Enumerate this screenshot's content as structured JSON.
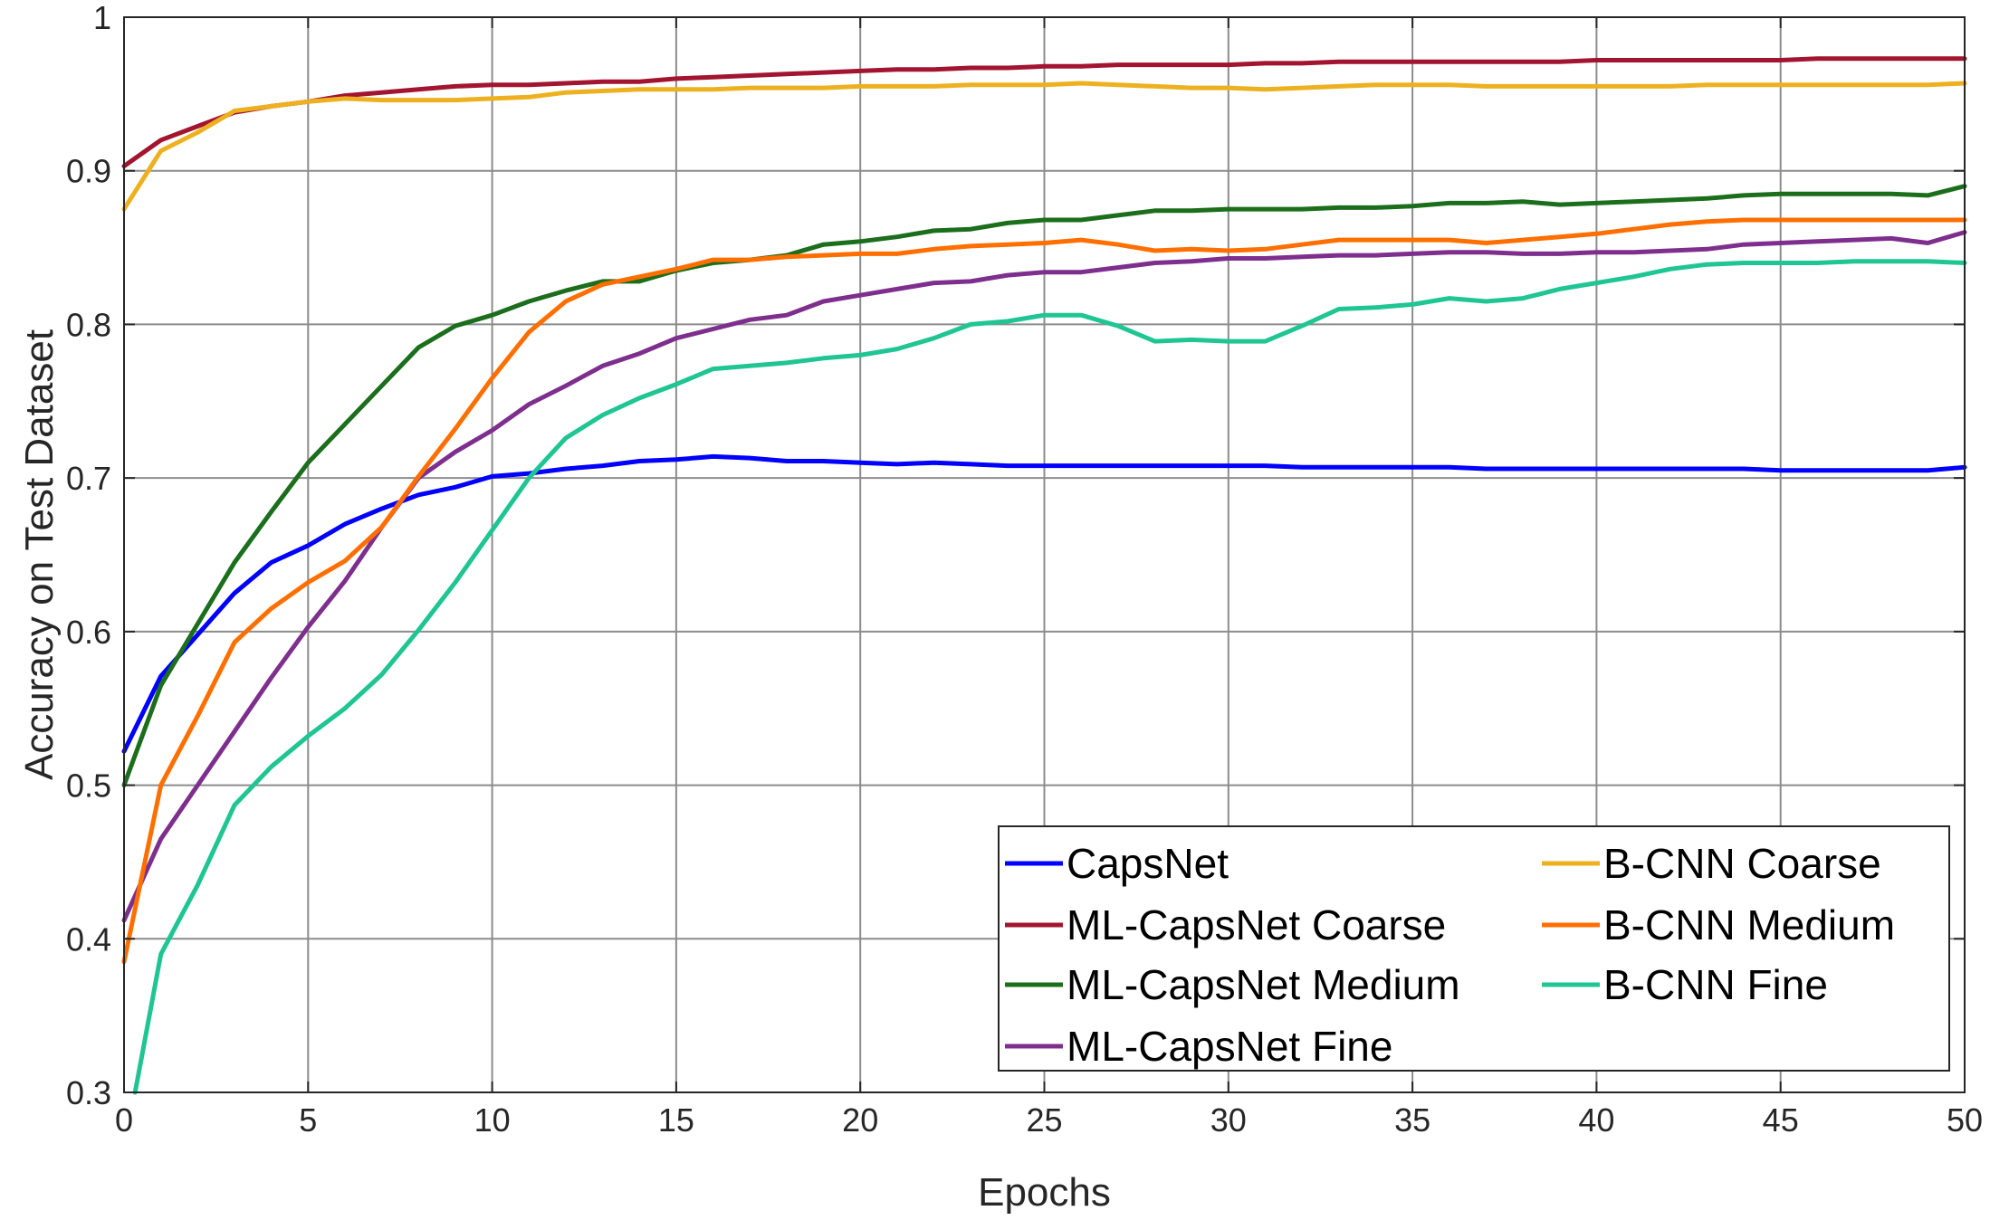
{
  "chart_data": {
    "type": "line",
    "title": "",
    "xlabel": "Epochs",
    "ylabel": "Accuracy on Test Dataset",
    "xlim": [
      0,
      50
    ],
    "ylim": [
      0.3,
      1.0
    ],
    "xticks": [
      0,
      5,
      10,
      15,
      20,
      25,
      30,
      35,
      40,
      45,
      50
    ],
    "yticks": [
      0.3,
      0.4,
      0.5,
      0.6,
      0.7,
      0.8,
      0.9,
      1.0
    ],
    "xtick_labels": [
      "0",
      "5",
      "10",
      "15",
      "20",
      "25",
      "30",
      "35",
      "40",
      "45",
      "50"
    ],
    "ytick_labels": [
      "0.3",
      "0.4",
      "0.5",
      "0.6",
      "0.7",
      "0.8",
      "0.9",
      "1"
    ],
    "grid": true,
    "legend_position": "bottom-right",
    "legend_columns": 2,
    "series": [
      {
        "name": "CapsNet",
        "color": "#0000ff",
        "x": [
          0,
          1,
          2,
          3,
          4,
          5,
          6,
          7,
          8,
          9,
          10,
          11,
          12,
          13,
          14,
          15,
          16,
          17,
          18,
          19,
          20,
          21,
          22,
          23,
          24,
          25,
          26,
          27,
          28,
          29,
          30,
          31,
          32,
          33,
          34,
          35,
          36,
          37,
          38,
          39,
          40,
          41,
          42,
          43,
          44,
          45,
          46,
          47,
          48,
          49,
          50
        ],
        "values": [
          0.522,
          0.571,
          0.598,
          0.625,
          0.645,
          0.656,
          0.67,
          0.68,
          0.689,
          0.694,
          0.701,
          0.703,
          0.706,
          0.708,
          0.711,
          0.712,
          0.714,
          0.713,
          0.711,
          0.711,
          0.71,
          0.709,
          0.71,
          0.709,
          0.708,
          0.708,
          0.708,
          0.708,
          0.708,
          0.708,
          0.708,
          0.708,
          0.707,
          0.707,
          0.707,
          0.707,
          0.707,
          0.706,
          0.706,
          0.706,
          0.706,
          0.706,
          0.706,
          0.706,
          0.706,
          0.705,
          0.705,
          0.705,
          0.705,
          0.705,
          0.707
        ]
      },
      {
        "name": "ML-CapsNet Coarse",
        "color": "#a2142f",
        "x": [
          0,
          1,
          2,
          3,
          4,
          5,
          6,
          7,
          8,
          9,
          10,
          11,
          12,
          13,
          14,
          15,
          16,
          17,
          18,
          19,
          20,
          21,
          22,
          23,
          24,
          25,
          26,
          27,
          28,
          29,
          30,
          31,
          32,
          33,
          34,
          35,
          36,
          37,
          38,
          39,
          40,
          41,
          42,
          43,
          44,
          45,
          46,
          47,
          48,
          49,
          50
        ],
        "values": [
          0.903,
          0.92,
          0.929,
          0.938,
          0.942,
          0.945,
          0.949,
          0.951,
          0.953,
          0.955,
          0.956,
          0.956,
          0.957,
          0.958,
          0.958,
          0.96,
          0.961,
          0.962,
          0.963,
          0.964,
          0.965,
          0.966,
          0.966,
          0.967,
          0.967,
          0.968,
          0.968,
          0.969,
          0.969,
          0.969,
          0.969,
          0.97,
          0.97,
          0.971,
          0.971,
          0.971,
          0.971,
          0.971,
          0.971,
          0.971,
          0.972,
          0.972,
          0.972,
          0.972,
          0.972,
          0.972,
          0.973,
          0.973,
          0.973,
          0.973,
          0.973
        ]
      },
      {
        "name": "ML-CapsNet Medium",
        "color": "#1b6e1b",
        "x": [
          0,
          1,
          2,
          3,
          4,
          5,
          6,
          7,
          8,
          9,
          10,
          11,
          12,
          13,
          14,
          15,
          16,
          17,
          18,
          19,
          20,
          21,
          22,
          23,
          24,
          25,
          26,
          27,
          28,
          29,
          30,
          31,
          32,
          33,
          34,
          35,
          36,
          37,
          38,
          39,
          40,
          41,
          42,
          43,
          44,
          45,
          46,
          47,
          48,
          49,
          50
        ],
        "values": [
          0.5,
          0.565,
          0.605,
          0.645,
          0.678,
          0.71,
          0.735,
          0.76,
          0.785,
          0.799,
          0.806,
          0.815,
          0.822,
          0.828,
          0.828,
          0.835,
          0.84,
          0.842,
          0.845,
          0.852,
          0.854,
          0.857,
          0.861,
          0.862,
          0.866,
          0.868,
          0.868,
          0.871,
          0.874,
          0.874,
          0.875,
          0.875,
          0.875,
          0.876,
          0.876,
          0.877,
          0.879,
          0.879,
          0.88,
          0.878,
          0.879,
          0.88,
          0.881,
          0.882,
          0.884,
          0.885,
          0.885,
          0.885,
          0.885,
          0.884,
          0.89
        ]
      },
      {
        "name": "ML-CapsNet Fine",
        "color": "#7e2f8e",
        "x": [
          0,
          1,
          2,
          3,
          4,
          5,
          6,
          7,
          8,
          9,
          10,
          11,
          12,
          13,
          14,
          15,
          16,
          17,
          18,
          19,
          20,
          21,
          22,
          23,
          24,
          25,
          26,
          27,
          28,
          29,
          30,
          31,
          32,
          33,
          34,
          35,
          36,
          37,
          38,
          39,
          40,
          41,
          42,
          43,
          44,
          45,
          46,
          47,
          48,
          49,
          50
        ],
        "values": [
          0.412,
          0.465,
          0.5,
          0.535,
          0.57,
          0.603,
          0.633,
          0.668,
          0.7,
          0.717,
          0.731,
          0.748,
          0.76,
          0.773,
          0.781,
          0.791,
          0.797,
          0.803,
          0.806,
          0.815,
          0.819,
          0.823,
          0.827,
          0.828,
          0.832,
          0.834,
          0.834,
          0.837,
          0.84,
          0.841,
          0.843,
          0.843,
          0.844,
          0.845,
          0.845,
          0.846,
          0.847,
          0.847,
          0.846,
          0.846,
          0.847,
          0.847,
          0.848,
          0.849,
          0.852,
          0.853,
          0.854,
          0.855,
          0.856,
          0.853,
          0.86
        ]
      },
      {
        "name": "B-CNN Coarse",
        "color": "#edb120",
        "x": [
          0,
          1,
          2,
          3,
          4,
          5,
          6,
          7,
          8,
          9,
          10,
          11,
          12,
          13,
          14,
          15,
          16,
          17,
          18,
          19,
          20,
          21,
          22,
          23,
          24,
          25,
          26,
          27,
          28,
          29,
          30,
          31,
          32,
          33,
          34,
          35,
          36,
          37,
          38,
          39,
          40,
          41,
          42,
          43,
          44,
          45,
          46,
          47,
          48,
          49,
          50
        ],
        "values": [
          0.875,
          0.913,
          0.925,
          0.939,
          0.942,
          0.945,
          0.947,
          0.946,
          0.946,
          0.946,
          0.947,
          0.948,
          0.951,
          0.952,
          0.953,
          0.953,
          0.953,
          0.954,
          0.954,
          0.954,
          0.955,
          0.955,
          0.955,
          0.956,
          0.956,
          0.956,
          0.957,
          0.956,
          0.955,
          0.954,
          0.954,
          0.953,
          0.954,
          0.955,
          0.956,
          0.956,
          0.956,
          0.955,
          0.955,
          0.955,
          0.955,
          0.955,
          0.955,
          0.956,
          0.956,
          0.956,
          0.956,
          0.956,
          0.956,
          0.956,
          0.957
        ]
      },
      {
        "name": "B-CNN Medium",
        "color": "#ff6f00",
        "x": [
          0,
          1,
          2,
          3,
          4,
          5,
          6,
          7,
          8,
          9,
          10,
          11,
          12,
          13,
          14,
          15,
          16,
          17,
          18,
          19,
          20,
          21,
          22,
          23,
          24,
          25,
          26,
          27,
          28,
          29,
          30,
          31,
          32,
          33,
          34,
          35,
          36,
          37,
          38,
          39,
          40,
          41,
          42,
          43,
          44,
          45,
          46,
          47,
          48,
          49,
          50
        ],
        "values": [
          0.385,
          0.5,
          0.545,
          0.593,
          0.615,
          0.632,
          0.646,
          0.668,
          0.701,
          0.732,
          0.765,
          0.795,
          0.815,
          0.826,
          0.831,
          0.836,
          0.842,
          0.842,
          0.844,
          0.845,
          0.846,
          0.846,
          0.849,
          0.851,
          0.852,
          0.853,
          0.855,
          0.852,
          0.848,
          0.849,
          0.848,
          0.849,
          0.852,
          0.855,
          0.855,
          0.855,
          0.855,
          0.853,
          0.855,
          0.857,
          0.859,
          0.862,
          0.865,
          0.867,
          0.868,
          0.868,
          0.868,
          0.868,
          0.868,
          0.868,
          0.868
        ]
      },
      {
        "name": "B-CNN Fine",
        "color": "#1fc593",
        "x": [
          0.3,
          1,
          2,
          3,
          4,
          5,
          6,
          7,
          8,
          9,
          10,
          11,
          12,
          13,
          14,
          15,
          16,
          17,
          18,
          19,
          20,
          21,
          22,
          23,
          24,
          25,
          26,
          27,
          28,
          29,
          30,
          31,
          32,
          33,
          34,
          35,
          36,
          37,
          38,
          39,
          40,
          41,
          42,
          43,
          44,
          45,
          46,
          47,
          48,
          49,
          50
        ],
        "values": [
          0.3,
          0.39,
          0.435,
          0.487,
          0.512,
          0.532,
          0.55,
          0.572,
          0.601,
          0.632,
          0.666,
          0.7,
          0.726,
          0.741,
          0.752,
          0.761,
          0.771,
          0.773,
          0.775,
          0.778,
          0.78,
          0.784,
          0.791,
          0.8,
          0.802,
          0.806,
          0.806,
          0.799,
          0.789,
          0.79,
          0.789,
          0.789,
          0.799,
          0.81,
          0.811,
          0.813,
          0.817,
          0.815,
          0.817,
          0.823,
          0.827,
          0.831,
          0.836,
          0.839,
          0.84,
          0.84,
          0.84,
          0.841,
          0.841,
          0.841,
          0.84
        ]
      }
    ]
  }
}
